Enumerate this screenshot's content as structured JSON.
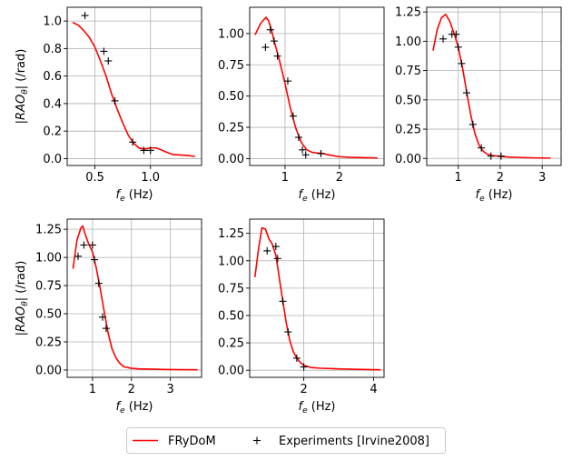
{
  "legend": {
    "model_label": "FRyDoM",
    "exp_label": "Experiments [Irvine2008]"
  },
  "colors": {
    "model": "#ff0000",
    "experiment": "#000000",
    "grid": "#b0b0b0"
  },
  "chart_data": [
    {
      "type": "line",
      "xlabel_main": "f",
      "xlabel_sub": "e",
      "xlabel_unit": " (Hz)",
      "ylabel_main": "|RAO",
      "ylabel_sub": "θ",
      "ylabel_unit": "| (/rad)",
      "grid": true,
      "xlim": [
        0.25,
        1.46
      ],
      "ylim": [
        -0.05,
        1.1
      ],
      "xticks": [
        0.5,
        1.0
      ],
      "xtick_labels": [
        "0.5",
        "1.0"
      ],
      "yticks": [
        0.0,
        0.2,
        0.4,
        0.6,
        0.8,
        1.0
      ],
      "ytick_labels": [
        "0.0",
        "0.2",
        "0.4",
        "0.6",
        "0.8",
        "1.0"
      ],
      "series": [
        {
          "name": "FRyDoM",
          "kind": "line",
          "x": [
            0.3,
            0.35,
            0.4,
            0.45,
            0.5,
            0.55,
            0.6,
            0.65,
            0.7,
            0.75,
            0.8,
            0.85,
            0.9,
            0.95,
            1.0,
            1.05,
            1.1,
            1.15,
            1.2,
            1.25,
            1.3,
            1.35,
            1.4
          ],
          "y": [
            0.99,
            0.97,
            0.93,
            0.88,
            0.81,
            0.71,
            0.6,
            0.47,
            0.36,
            0.26,
            0.17,
            0.11,
            0.075,
            0.07,
            0.078,
            0.078,
            0.062,
            0.045,
            0.03,
            0.027,
            0.025,
            0.022,
            0.015
          ]
        },
        {
          "name": "Experiments [Irvine2008]",
          "kind": "marker",
          "x": [
            0.41,
            0.58,
            0.62,
            0.68,
            0.84,
            0.94,
            1.0
          ],
          "y": [
            1.04,
            0.78,
            0.71,
            0.42,
            0.12,
            0.06,
            0.06
          ]
        }
      ]
    },
    {
      "type": "line",
      "xlabel_main": "f",
      "xlabel_sub": "e",
      "xlabel_unit": " (Hz)",
      "ylabel_main": "",
      "ylabel_sub": "",
      "ylabel_unit": "",
      "grid": true,
      "xlim": [
        0.35,
        2.82
      ],
      "ylim": [
        -0.055,
        1.21
      ],
      "xticks": [
        1,
        2
      ],
      "xtick_labels": [
        "1",
        "2"
      ],
      "yticks": [
        0.0,
        0.25,
        0.5,
        0.75,
        1.0
      ],
      "ytick_labels": [
        "0.00",
        "0.25",
        "0.50",
        "0.75",
        "1.00"
      ],
      "series": [
        {
          "name": "FRyDoM",
          "kind": "line",
          "x": [
            0.45,
            0.55,
            0.65,
            0.7,
            0.75,
            0.8,
            0.9,
            1.0,
            1.1,
            1.2,
            1.3,
            1.4,
            1.5,
            1.6,
            1.7,
            1.8,
            2.0,
            2.2,
            2.4,
            2.7
          ],
          "y": [
            0.99,
            1.08,
            1.13,
            1.1,
            1.03,
            0.94,
            0.78,
            0.6,
            0.4,
            0.24,
            0.13,
            0.07,
            0.05,
            0.045,
            0.04,
            0.03,
            0.015,
            0.01,
            0.008,
            0.005
          ]
        },
        {
          "name": "Experiments [Irvine2008]",
          "kind": "marker",
          "x": [
            0.64,
            0.73,
            0.8,
            0.86,
            1.05,
            1.15,
            1.25,
            1.32,
            1.38,
            1.66
          ],
          "y": [
            0.89,
            1.03,
            0.94,
            0.82,
            0.62,
            0.34,
            0.17,
            0.07,
            0.03,
            0.04
          ]
        }
      ]
    },
    {
      "type": "line",
      "xlabel_main": "f",
      "xlabel_sub": "e",
      "xlabel_unit": " (Hz)",
      "ylabel_main": "",
      "ylabel_sub": "",
      "ylabel_unit": "",
      "grid": true,
      "xlim": [
        0.25,
        3.45
      ],
      "ylim": [
        -0.06,
        1.29
      ],
      "xticks": [
        1,
        2,
        3
      ],
      "xtick_labels": [
        "1",
        "2",
        "3"
      ],
      "yticks": [
        0.0,
        0.25,
        0.5,
        0.75,
        1.0,
        1.25
      ],
      "ytick_labels": [
        "0.00",
        "0.25",
        "0.50",
        "0.75",
        "1.00",
        "1.25"
      ],
      "series": [
        {
          "name": "FRyDoM",
          "kind": "line",
          "x": [
            0.4,
            0.5,
            0.6,
            0.7,
            0.8,
            0.9,
            1.0,
            1.1,
            1.2,
            1.3,
            1.4,
            1.5,
            1.6,
            1.7,
            1.8,
            2.0,
            2.2,
            2.5,
            2.8,
            3.0,
            3.2
          ],
          "y": [
            0.92,
            1.1,
            1.2,
            1.23,
            1.17,
            1.07,
            0.95,
            0.78,
            0.57,
            0.37,
            0.21,
            0.11,
            0.06,
            0.035,
            0.025,
            0.018,
            0.012,
            0.008,
            0.005,
            0.004,
            0.003
          ]
        },
        {
          "name": "Experiments [Irvine2008]",
          "kind": "marker",
          "x": [
            0.64,
            0.85,
            0.95,
            1.0,
            1.08,
            1.2,
            1.35,
            1.55,
            1.78,
            2.02
          ],
          "y": [
            1.02,
            1.06,
            1.06,
            0.95,
            0.81,
            0.56,
            0.29,
            0.09,
            0.02,
            0.02
          ]
        }
      ]
    },
    {
      "type": "line",
      "xlabel_main": "f",
      "xlabel_sub": "e",
      "xlabel_unit": " (Hz)",
      "ylabel_main": "|RAO",
      "ylabel_sub": "θ",
      "ylabel_unit": "| (/rad)",
      "grid": true,
      "xlim": [
        0.35,
        3.8
      ],
      "ylim": [
        -0.065,
        1.34
      ],
      "xticks": [
        1,
        2,
        3
      ],
      "xtick_labels": [
        "1",
        "2",
        "3"
      ],
      "yticks": [
        0.0,
        0.25,
        0.5,
        0.75,
        1.0,
        1.25
      ],
      "ytick_labels": [
        "0.00",
        "0.25",
        "0.50",
        "0.75",
        "1.00",
        "1.25"
      ],
      "series": [
        {
          "name": "FRyDoM",
          "kind": "line",
          "x": [
            0.5,
            0.6,
            0.7,
            0.75,
            0.8,
            0.9,
            1.0,
            1.1,
            1.2,
            1.3,
            1.4,
            1.5,
            1.6,
            1.7,
            1.8,
            2.0,
            2.2,
            2.5,
            2.8,
            3.0,
            3.3,
            3.7
          ],
          "y": [
            0.9,
            1.15,
            1.26,
            1.28,
            1.22,
            1.12,
            1.05,
            0.9,
            0.72,
            0.52,
            0.33,
            0.19,
            0.11,
            0.06,
            0.03,
            0.015,
            0.01,
            0.008,
            0.005,
            0.004,
            0.003,
            0.002
          ]
        },
        {
          "name": "Experiments [Irvine2008]",
          "kind": "marker",
          "x": [
            0.63,
            0.78,
            1.0,
            1.05,
            1.16,
            1.26,
            1.35
          ],
          "y": [
            1.01,
            1.11,
            1.11,
            0.98,
            0.77,
            0.47,
            0.37
          ]
        }
      ]
    },
    {
      "type": "line",
      "xlabel_main": "f",
      "xlabel_sub": "e",
      "xlabel_unit": " (Hz)",
      "ylabel_main": "",
      "ylabel_sub": "",
      "ylabel_unit": "",
      "grid": true,
      "xlim": [
        0.45,
        4.3
      ],
      "ylim": [
        -0.065,
        1.38
      ],
      "xticks": [
        2,
        4
      ],
      "xtick_labels": [
        "2",
        "4"
      ],
      "yticks": [
        0.0,
        0.25,
        0.5,
        0.75,
        1.0,
        1.25
      ],
      "ytick_labels": [
        "0.00",
        "0.25",
        "0.50",
        "0.75",
        "1.00",
        "1.25"
      ],
      "series": [
        {
          "name": "FRyDoM",
          "kind": "line",
          "x": [
            0.6,
            0.7,
            0.8,
            0.9,
            1.0,
            1.1,
            1.2,
            1.3,
            1.4,
            1.5,
            1.6,
            1.7,
            1.8,
            1.9,
            2.0,
            2.2,
            2.5,
            3.0,
            3.5,
            4.0,
            4.2
          ],
          "y": [
            0.85,
            1.1,
            1.3,
            1.29,
            1.2,
            1.15,
            1.05,
            0.84,
            0.63,
            0.43,
            0.27,
            0.17,
            0.11,
            0.07,
            0.045,
            0.025,
            0.018,
            0.012,
            0.008,
            0.005,
            0.004
          ]
        },
        {
          "name": "Experiments [Irvine2008]",
          "kind": "marker",
          "x": [
            0.95,
            1.2,
            1.25,
            1.4,
            1.55,
            1.8,
            2.0
          ],
          "y": [
            1.09,
            1.13,
            1.02,
            0.63,
            0.35,
            0.11,
            0.03
          ]
        }
      ]
    }
  ]
}
